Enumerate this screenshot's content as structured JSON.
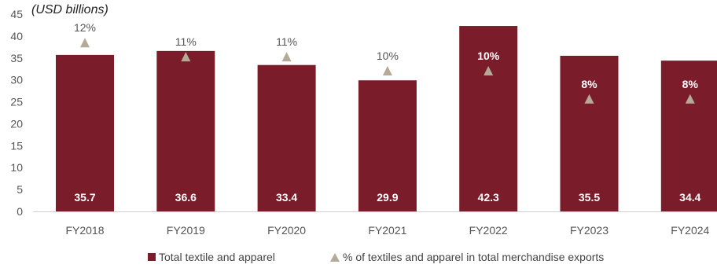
{
  "chart_data": {
    "type": "bar",
    "unit_label": "(USD billions)",
    "categories": [
      "FY2018",
      "FY2019",
      "FY2020",
      "FY2021",
      "FY2022",
      "FY2023",
      "FY2024"
    ],
    "series": [
      {
        "name": "Total textile and apparel",
        "type": "bar",
        "values": [
          35.7,
          36.6,
          33.4,
          29.9,
          42.3,
          35.5,
          34.4
        ],
        "value_labels": [
          "35.7",
          "36.6",
          "33.4",
          "29.9",
          "42.3",
          "35.5",
          "34.4"
        ],
        "color": "#7b1c2a"
      },
      {
        "name": "% of textiles and apparel in total merchandise exports",
        "type": "marker",
        "marker": "triangle",
        "values": [
          12,
          11,
          11,
          10,
          10,
          8,
          8
        ],
        "value_labels": [
          "12%",
          "11%",
          "11%",
          "10%",
          "10%",
          "8%",
          "8%"
        ],
        "color": "#b5a997"
      }
    ],
    "y_axis": {
      "min": 0,
      "max": 45,
      "ticks": [
        0,
        5,
        10,
        15,
        20,
        25,
        30,
        35,
        40,
        45
      ]
    },
    "grid": false,
    "legend_position": "bottom"
  }
}
